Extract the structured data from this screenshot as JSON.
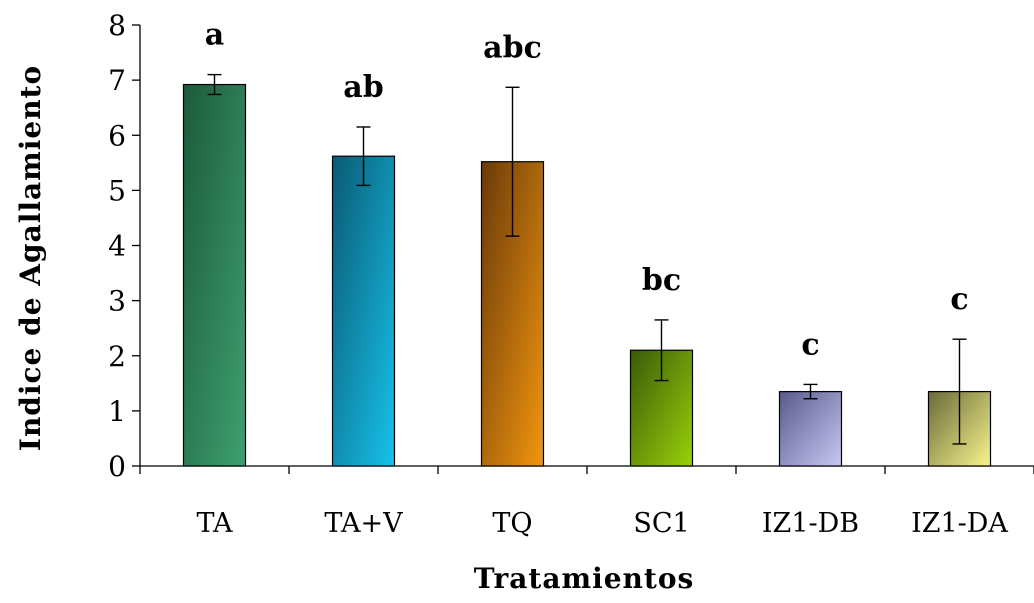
{
  "chart_data": {
    "type": "bar",
    "title": "",
    "xlabel": "Tratamientos",
    "ylabel": "Indice de Agallamiento",
    "ylim": [
      0,
      8
    ],
    "yticks": [
      0,
      1,
      2,
      3,
      4,
      5,
      6,
      7,
      8
    ],
    "grid": false,
    "categories": [
      "TA",
      "TA+V",
      "TQ",
      "SC1",
      "IZ1-DB",
      "IZ1-DA"
    ],
    "values": [
      6.92,
      5.62,
      5.52,
      2.1,
      1.35,
      1.35
    ],
    "error_bars": [
      0.18,
      0.53,
      1.35,
      0.55,
      0.13,
      0.95
    ],
    "significance_letters": [
      "a",
      "ab",
      "abc",
      "bc",
      "c",
      "c"
    ],
    "bar_colors": [
      [
        "#1c5a3a",
        "#3ea070"
      ],
      [
        "#0a5a73",
        "#17c2ec"
      ],
      [
        "#6a3a0a",
        "#f2960e"
      ],
      [
        "#3a5a08",
        "#9ad10a"
      ],
      [
        "#5a5a8a",
        "#c6c8f4"
      ],
      [
        "#6a6a3a",
        "#f8f58c"
      ]
    ]
  }
}
